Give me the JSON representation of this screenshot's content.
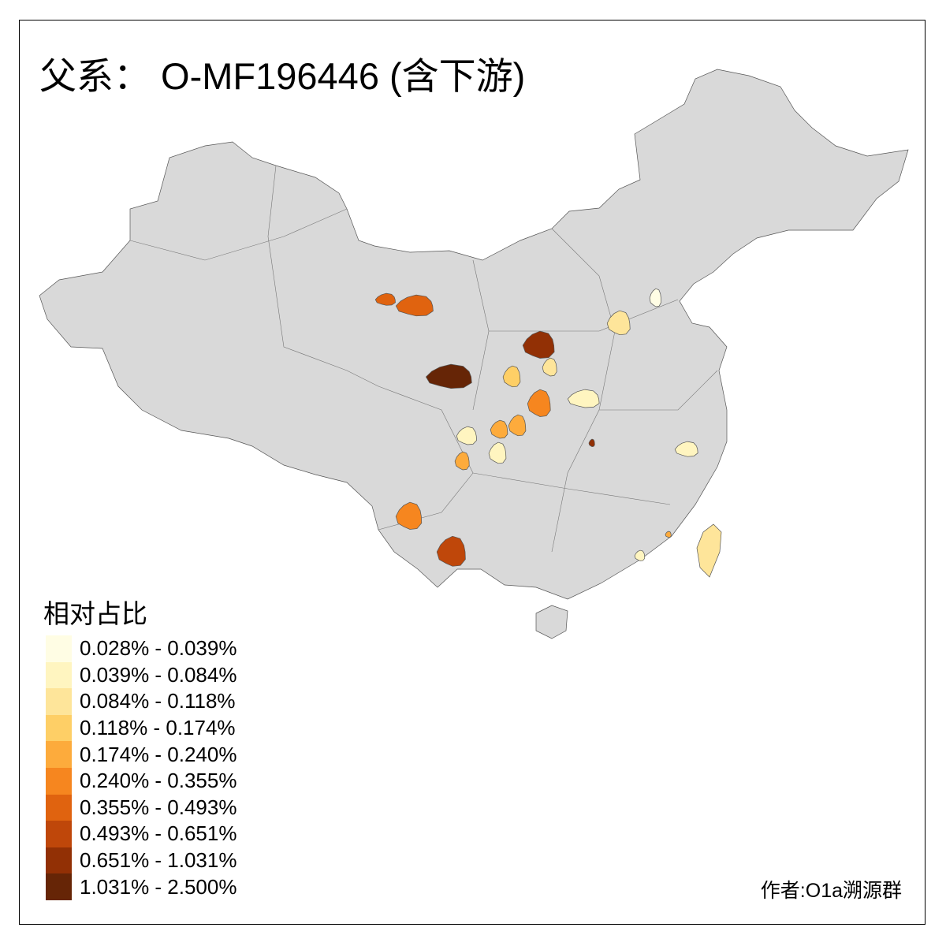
{
  "title": "父系： O-MF196446 (含下游)",
  "legend": {
    "title": "相对占比",
    "bins": [
      {
        "label": "0.028% - 0.039%",
        "color": "#FFFDE4"
      },
      {
        "label": "0.039% - 0.084%",
        "color": "#FFF5C0"
      },
      {
        "label": "0.084% - 0.118%",
        "color": "#FEE59A"
      },
      {
        "label": "0.118% - 0.174%",
        "color": "#FECF66"
      },
      {
        "label": "0.174% - 0.240%",
        "color": "#FDAB3C"
      },
      {
        "label": "0.240% - 0.355%",
        "color": "#F6861F"
      },
      {
        "label": "0.355% - 0.493%",
        "color": "#E0630F"
      },
      {
        "label": "0.493% - 0.651%",
        "color": "#BF470A"
      },
      {
        "label": "0.651% - 1.031%",
        "color": "#923005"
      },
      {
        "label": "1.031% - 2.500%",
        "color": "#662506"
      }
    ]
  },
  "map": {
    "base_color": "#D9D9D9",
    "border_color": "#555555"
  },
  "author": "作者:O1a溯源群"
}
